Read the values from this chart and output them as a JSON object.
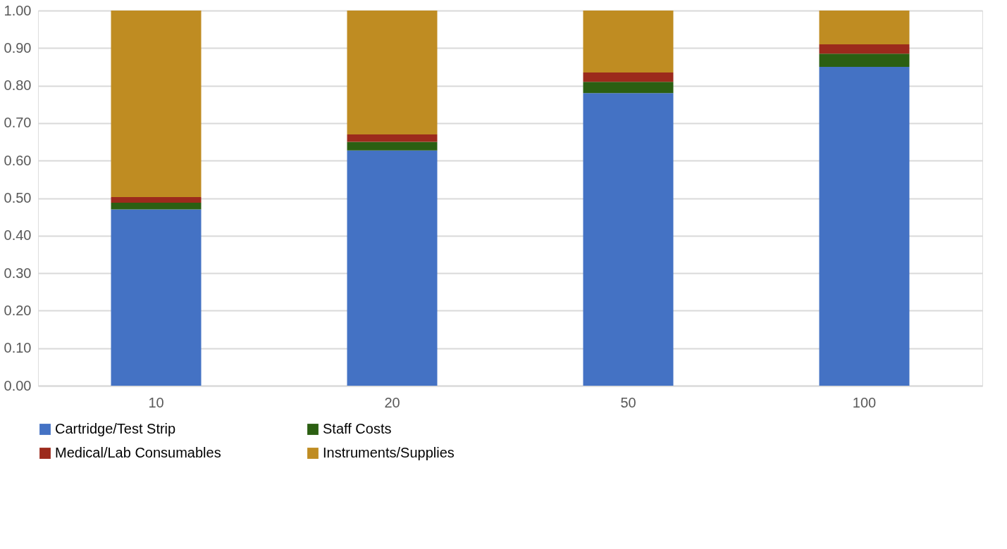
{
  "chart_data": {
    "type": "bar",
    "stacked": true,
    "categories": [
      "10",
      "20",
      "50",
      "100"
    ],
    "series": [
      {
        "name": "Cartridge/Test Strip",
        "color": "#4472c4",
        "values": [
          0.47,
          0.627,
          0.78,
          0.85
        ]
      },
      {
        "name": "Staff Costs",
        "color": "#2b5f12",
        "values": [
          0.018,
          0.023,
          0.03,
          0.035
        ]
      },
      {
        "name": "Medical/Lab Consumables",
        "color": "#9c2a1c",
        "values": [
          0.015,
          0.02,
          0.025,
          0.025
        ]
      },
      {
        "name": "Instruments/Supplies",
        "color": "#bf8c22",
        "values": [
          0.497,
          0.33,
          0.165,
          0.09
        ]
      }
    ],
    "ylim": [
      0,
      1
    ],
    "yticks": [
      {
        "value": 0,
        "label": "0.00"
      },
      {
        "value": 0.1,
        "label": "0.10"
      },
      {
        "value": 0.2,
        "label": "0.20"
      },
      {
        "value": 0.3,
        "label": "0.30"
      },
      {
        "value": 0.4,
        "label": "0.40"
      },
      {
        "value": 0.5,
        "label": "0.50"
      },
      {
        "value": 0.6,
        "label": "0.60"
      },
      {
        "value": 0.7,
        "label": "0.70"
      },
      {
        "value": 0.8,
        "label": "0.80"
      },
      {
        "value": 0.9,
        "label": "0.90"
      },
      {
        "value": 1,
        "label": "1.00"
      }
    ],
    "grid": "y",
    "legend": "bottom"
  }
}
